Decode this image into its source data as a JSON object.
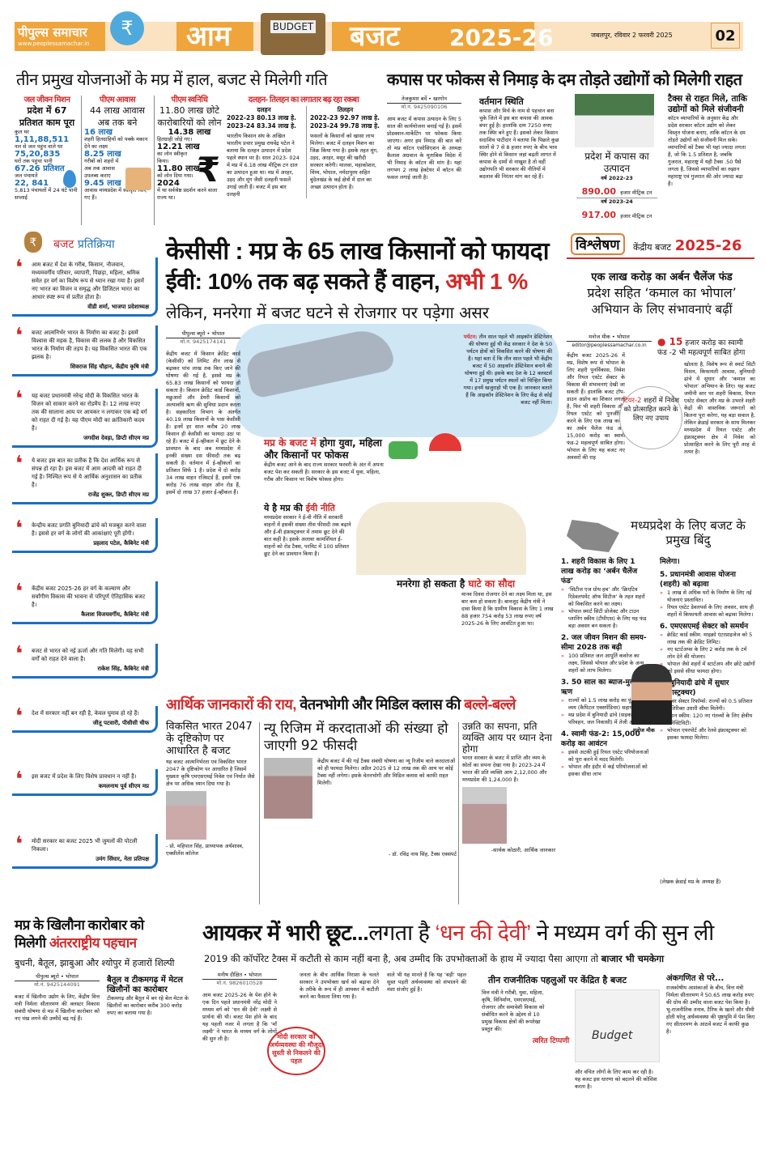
{
  "masthead": {
    "paper_name": "पीपुल्स समाचार",
    "website": "www.peoplessamachar.in",
    "rupee_symbol": "₹",
    "title_left": "आम",
    "briefcase_label": "BUDGET",
    "title_right": "बजट",
    "year": "2025-26",
    "dateline": "जबलपुर, रविवार 2 फरवरी 2025",
    "page_number": "02",
    "accent_color": "#f0a53c"
  },
  "schemes": {
    "headline": "तीन प्रमुख योजनाओं के मप्र में हाल, बजट से मिलेगी गति",
    "jal_jeevan": {
      "label": "जल जीवन मिशन",
      "title": "प्रदेश में 67 प्रतिशत काम पूरा",
      "lines": [
        "कुल घर",
        "1,11,88,511",
        "नल से जल पहुंच वाले घर",
        "75,20,835",
        "घरों तक पहुंचा पानी",
        "67.26 प्रतिशत",
        "जल पंचायतें",
        "22, 841",
        "5,813 पंचायतों में 24 घंटे पानी सप्लाई"
      ]
    },
    "pm_awas": {
      "label": "पीएम आवास",
      "title": "44 लाख आवास अब तक बने",
      "lines": [
        "16 लाख",
        "शहरी हितग्राहियों को पक्के मकान देने का लक्ष्य",
        "8.25 लाख",
        "गरीबों को शहरों में अब तक आवास उपलब्ध कराए",
        "9.45 लाख",
        "आवास मध्यप्रदेश में स्वीकृत किए गए हैं।"
      ]
    },
    "pm_svanidhi": {
      "label": "पीएम स्वनिधि",
      "title": "11.80 लाख छोटे कारोबारियों को लोन",
      "lines": [
        "14.38 लाख",
        "हितग्राही जोड़े गए।",
        "12.21 लाख",
        "का लोन स्वीकृत किया।",
        "11.80 लाख",
        "को लोन दिया गया।",
        "2024",
        "में था सर्वश्रेष्ठ प्रदर्शन करने वाला राज्य था।"
      ]
    },
    "pulses": {
      "label": "दलहन- तिलहन का लगातार बढ़ रहा रकबा",
      "dalhan": {
        "title": "दलहन",
        "rows": [
          "2022-23  80.13 लाख हे.",
          "2023-24  83.34 लाख हे."
        ]
      },
      "tilhan": {
        "title": "तिलहन",
        "rows": [
          "2022-23  92.97 लाख हे.",
          "2023-24  99.78 लाख हे."
        ]
      },
      "text1": "भारतीय किसान संघ के अखिल भारतीय प्रचार प्रमुख राघवेंद्र पटेल ने बताया कि दलहन उत्पादन में प्रदेश पहले स्थान पर है। साल 2023- 024 में मप्र में 6.18 लाख मीट्रिक टन दाल का उत्पादन हुआ था। मप्र में अरहर, उड़द और मूंग जैसी दलहनी फसलें उगाई जाती हैं। बजट में इस बार दलहनी",
      "text2": "फसलों के किसानों को खासा लाभ मिलेगा। बजट में दलहन मिशन का जिक्र किया गया है। इसके तहत मूंग, उड़द, अरहर, मसूर की खरीदी सरकार करेगी। मालवा, महाकोशल, विंध्य, भोपाल, नर्मदापुरम सहित बुंदेलखंड के कई क्षेत्रों में दाल का अच्छा उत्पादन होता है।"
    }
  },
  "cotton": {
    "headline": "कपास पर फोकस से निमाड़ के दम तोड़ते उद्योगों को मिलेगी राहत",
    "byline": "तेजकुमार बर्वे • खरगोन",
    "phone": "मो.नं. 9425090106",
    "text1": "आम बजट में कपास उत्पादन के लिए 5 साल की कार्ययोजना बनाई गई है। इसमें प्रोडक्शन-मार्केटिंग पर फोकस किया जाएगा। अगर हम निमाड़ की बात करें तो मप्र कॉटन एसोसिएशन के अध्यक्ष कैलाश अग्रवाल के मुताबिक विदेश में भी निमाड़ के कॉटन की मांग है। यहां लगभग 2 लाख हेक्टेयर में कॉटन की फसल लगाई जाती है।",
    "sub1": "वर्तमान स्थिति",
    "text2": "कपास और मिर्च के नाम से पहचान बना चुके जिले में इस बार कपास की आवक बंपर हुई है। हालांकि दाम 7250 रुपए तक स्थिर बने हुए हैं। इसको लेकर किसान सदाशिव पाटीदार ने बताया कि पिछले कुछ सालों से 7 से 8 हजार रुपए के बीच भाव स्थिर होने से किसान जहां बढ़ती लागत में कपास के दामों से नाखुश है तो वहीं उद्योगपति भी सरकार की नीतियों में बदलाव की निरंतर मांग कर रहे हैं।",
    "production_title": "प्रदेश में कपास का उत्पादन",
    "year1": "वर्ष 2022-23",
    "value1": "890.00",
    "year2": "वर्ष 2023-24",
    "value2": "917.00",
    "unit": "हजार मीट्रिक टन",
    "sub2": "टैक्स से राहत मिले, ताकि उद्योगों को मिले संजीवनी",
    "text3": "कॉटन व्यापारियों के अनुसार केंद्र और प्रदेश सरकार कॉटन उद्योग को लेकर विस्तृत योजना बनाए, ताकि कॉटन के दम तोड़ते उद्योगों को संजीवनी मिल सके। व्यापारियों को टैक्स भी यहां ज्यादा लगता है, जो कि 1.5 प्रतिशत है, जबकि गुजरात, महाराष्ट्र में यही टैक्स .50 पैसे लगता है, जिससे व्यापारियों का रुझान महाराष्ट्र एवं गुजरात की ओर ज्यादा बढ़ा है।"
  },
  "reactions": {
    "heading_a": "बजट",
    "heading_b": "प्रतिक्रिया",
    "quotes": [
      {
        "text": "आम बजट में देश के गरीब, किसान, नौजवान, मध्यमवर्गीय परिवार, व्यापारी, पिछड़ा, महिला, श्रमिक समेत हर वर्ग का विशेष रूप से ध्यान रखा गया है। इसमें नए भारत का विजन व समृद्ध और डिजिटल भारत का आधार स्पष्ट रूप से प्रतीत होता है।",
        "by": "वीडी शर्मा, भाजपा प्रदेशाध्यक्ष"
      },
      {
        "text": "बजट आत्मनिर्भर भारत के निर्माण का बजट है। इसमें विश्वास की महक है, विकास की ललक है और विकसित भारत के निर्माण की तड़प है। यह विकसित भारत की एक झलक है।",
        "by": "शिवराज सिंह चौहान, केंद्रीय कृषि मंत्री"
      },
      {
        "text": "यह बजट प्रधानमंत्री नरेन्द्र मोदी के विकसित भारत के विजन को साकार करने का रोडमैप है। 12 लाख रुपए तक की सालाना आय पर आयकर न लगाकर एक बड़े वर्ग को राहत दी गई है। यह पीएम मोदी का क्रांतिकारी कदम है।",
        "by": "जगदीश देवड़ा, डिप्टी सीएम मप्र"
      },
      {
        "text": "ये बजट इस बात का प्रतीक है कि देश आर्थिक रूप से संपन्न हो रहा है। इस बजट में आम आदमी को राहत दी गई है। निश्चित रूप से ये आर्थिक अनुशासन का प्रतीक है।",
        "by": "राजेंद्र शुक्ल, डिप्टी सीएम मप्र"
      },
      {
        "text": "केन्द्रीय बजट प्रगति बुनियादी ढांचे को मजबूत करने वाला है। इससे हर वर्ग के लोगों की आकांक्षाएं पूरी होंगी।",
        "by": "प्रहलाद पटेल, कैबिनेट मंत्री"
      },
      {
        "text": "केंद्रीय बजट 2025-26 हर वर्ग के कल्याण और सर्वांगीण विकास की भावना से परिपूर्ण ऐतिहासिक बजट है।",
        "by": "कैलाश विजयवर्गीय, कैबिनेट मंत्री"
      },
      {
        "text": "बजट से भारत को नई ऊर्जा और गति मिलेगी। यह सभी वर्गों को राहत देने वाला है।",
        "by": "राकेश सिंह, कैबिनेट मंत्री"
      },
      {
        "text": "देश में सरकार नहीं बन रही है, केवल घुमाव हो रहे हैं।",
        "by": "जीतू पटवारी, पीसीसी चीफ"
      },
      {
        "text": "इस बजट में प्रदेश के लिए विशेष प्रावधान न नहीं है।",
        "by": "कमलनाथ पूर्व सीएम मप्र"
      },
      {
        "text": "मोदी सरकार का बजट 2025 भी जुमलों की पोटली निकला।",
        "by": "उमंग सिंघार, नेता प्रतिपक्ष"
      }
    ]
  },
  "main": {
    "headline1": "केसीसी : मप्र के 65 लाख किसानों को फायदा",
    "headline2a": "ईवी: 10% तक बढ़ सकते हैं वाहन,",
    "headline2b": "अभी 1 %",
    "headline3": "लेकिन, मनरेगा में बजट घटने से रोजगार पर पड़ेगा असर",
    "byline": "पीपुल्स ब्यूरो • भोपाल",
    "phone": "मो.नं. 9425174141",
    "text1": "केंद्रीय बजट में किसान क्रेडिट कार्ड (केसीसी) को लिमिट तीन लाख से बढ़ाकर पांच लाख तक किए जाने की घोषणा की गई है, इससे मप्र के 65.83 लाख किसानों को फायदा हो सकता है। किसान क्रेडिट कार्ड किसानों, मछुआरों और डेयरी किसानों को अल्पावधि ऋण की सुविधा प्रदान करता है। सहकारिता विभाग के अंतर्गत 40.19 लाख किसानों के पास केसीसी है। इनमें हर साल करीब 20 लाख किसान ही केसीसी का फायदा उठा पा रहे हैं। बजट में ई-व्हीकल में छूट देने के प्रावधान के बाद अब मध्यप्रदेश में इनकी संख्या दस फीसदी तक बढ़ सकती है। वर्तमान में ई-व्हीकलों का प्रतिशत सिर्फ 1 है। प्रदेश में दो करोड़ 34 लाख वाहन रजिस्टर्ड हैं, इसमें एक करोड़ 76 लाख वाहन ऑन रोड हैं, इसमें दो लाख 37 हजार ई-व्हीकल हैं।",
    "tourism_label": "पर्यटन:",
    "tourism_text": "तीन साल पहले भी आइकॉन डेस्टिनेशन की घोषणा हुई थी केंद्र सरकार ने देश के 50 पर्यटन क्षेत्रों को विकसित करने की घोषणा की है। यहां बता दें कि तीन साल पहले भी केंद्रीय बजट में 50 आइकॉन डेस्टिनेशन बनाने की घोषणा हुई थी। इसके बाद देश के 12 क्लस्टर्स में 17 प्रमुख पर्यटन स्थलों को चिन्हित किया गया। इनमें खजुराहो भी एक है। जानकार बताते हैं कि आइकॉन डेस्टिनेशन के लिए केंद्र से कोई बजट नहीं मिला।",
    "focus_a": "मप्र के बजट में",
    "focus_b": "होगा युवा, महिला और किसानों पर फोकस",
    "focus_text": "केंद्रीय बजट आने के बाद राज्य सरकार फरवरी के अंत में अपना बजट पेश कर सकती है। सरकार के इस बजट में युवा, महिला, गरीब और किसान पर विशेष फोकस होगा।",
    "ev_a": "ये है मप्र की",
    "ev_b": "ईवी नीति",
    "ev_text": "मध्यप्रदेश सरकार ने ई-वी नीति में सरकारी वाहनों में इसकी संख्या तीस फीसदी तक बढ़ाने और ई-वी इंफ्रास्ट्रक्चर में तमाम छूट देने की बात कही है। इसके अलावा कामर्शियल ई-वाहनों को रोड टैक्स, परमिट में 100 प्रतिशत छूट देने का प्रावधान किया है।",
    "mnrega_a": "मनरेगा हो सकता है",
    "mnrega_b": "घाटे का सौदा",
    "mnrega_text": "मानव दिवस रोजगार देने का लक्ष्य मिला था, इस बार कम हो सकता है। बावजूद केंद्रीय मंत्री ने दावा किया है कि ग्रामीण विकास के लिए 1 लाख 88 हजार 754 करोड़ 53 लाख रुपए वर्ष 2025-26 के लिए आवंटित हुआ था।"
  },
  "analysis": {
    "tag": "विश्लेषण",
    "series_a": "केंद्रीय बजट",
    "series_b": "2025-26",
    "headline1": "एक लाख करोड़ का अर्बन चैलेंज फंड",
    "headline2": "प्रदेश सहित ‘कमाल का भोपाल’",
    "headline3": "अभियान के लिए संभावनाएं बढ़ीं",
    "byline": "मनोज मीक • भोपाल",
    "email": "editor@peoplessamachar.co.in",
    "callout_a": "15",
    "callout_b": "हजार करोड़ का स्वामी फंड -2 भी महत्वपूर्ण साबित होगा",
    "circle_a": "टियर-2",
    "circle_b": "शहरों में निवेश को प्रोत्साहित करने के लिए नए उपाय",
    "text1": "केंद्रीय बजट 2025-26 में मप्र, विशेष रूप से भोपाल के लिए शहरी पुनर्विकास, निवेश और रियल एस्टेट सेक्टर के विकास की संभावनाएं देखी जा सकती हैं। हालांकि बजट टॉप-डाउन अप्रोच का शिकार लगता है, फिर भी शहरी विकास और रियल एस्टेट को पुनर्जीवित करने के लिए एक लाख करोड़ का अर्बन चैलेंज फंड और 15,000 करोड़ का स्वामी फंड-2 महत्वपूर्ण साबित होगा। भोपाल के लिए यह बजट नए अवसरों की राह",
    "text2": "खोलता है, विशेष रूप से स्मार्ट सिटी मिशन, किफायती आवास, बुनियादी ढांचे में सुधार और ‘कमाल का भोपाल’ अभियान के लिए। यह बजट जमीनी स्तर पर शहरी विकास, रियल एस्टेट सेक्टर और मप्र के उभरते शहरी केंद्रों की वास्तविक जरूरतों को कितना पूरा करेगा, यह बड़ा सवाल है, लेकिन क्रेडाई सरकार के साथ मिलकर मध्यप्रदेश में रियल एस्टेट और इंफ्रास्ट्रक्चर क्षेत्र में निवेश को प्रोत्साहित करने के लिए पूरी तरह से तत्पर है।",
    "points_title": "मध्यप्रदेश के लिए बजट के प्रमुख बिंदु",
    "points_left": [
      {
        "title": "1. शहरी विकास के लिए 1 लाख करोड़ का ‘अर्बन चैलेंज फंड’",
        "items": [
          "‘सिटीज एज ग्रोथ हब’ और ‘क्रिएटिव रिडेवलपमेंट ऑफ सिटीज’ के तहत शहरों को विकसित करने का लक्ष्य।",
          "भोपाल स्मार्ट सिटी प्रोजेक्ट और टाउन प्लानिंग स्कीम (टीपीएस) के लिए यह फंड बड़ा अवसर बन सकता है।"
        ]
      },
      {
        "title": "2. जल जीवन मिशन की समय-सीमा 2028 तक बढ़ी",
        "items": [
          "100 प्रतिशत जल आपूर्ति कवरेज का लक्ष्य, जिससे भोपाल और प्रदेश के अन्य शहरों को लाभ मिलेगा।"
        ]
      },
      {
        "title": "3. 50 साल का ब्याज-मुक्त ऋण",
        "items": [
          "राज्यों को 1.5 लाख करोड़ का पूंजीगत व्यय (कैपिटल एक्सपेंडिचर) सहायता।",
          "मप्र प्रदेश में बुनियादी ढांचे (सड़क, परिवहन, जल निकासी) में तेजी आएगी।"
        ]
      },
      {
        "title": "4. स्वामी फंड-2: 15,000 करोड़ का आवंटन",
        "items": [
          "इससे अटकी हुई रियल एस्टेट परियोजनाओं को पूरा करने में मदद मिलेगी।",
          "भोपाल और इंदौर में कई परियोजनाओं को इसका सीधा लाभ"
        ]
      }
    ],
    "points_right": [
      {
        "title": "मिलेगा।",
        "items": []
      },
      {
        "title": "5. प्रधानमंत्री आवास योजना (शहरी) को बढ़ावा",
        "items": [
          "1 लाख से अधिक घरों के निर्माण के लिए नई योजनाएं प्रस्तावित।",
          "रियल एस्टेट डेवलपर्स के लिए अवसर, साथ ही शहरों में किफायती आवास को बढ़ावा मिलेगा।"
        ]
      },
      {
        "title": "6. एमएसएमई सेक्टर को समर्थन",
        "items": [
          "क्रेडिट कार्ड स्कीम: माइक्रो एंटरप्राइजेज को 5 लाख तक की क्रेडिट लिमिट।",
          "नए स्टार्टअप्स के लिए 2 करोड़ तक के टर्म लोन देने की योजना।",
          "भोपाल जैसे शहरों में स्टार्टअप और छोटे उद्योगों को इससे सीधा फायदा होगा।"
        ]
      },
      {
        "title": "7. बुनियादी ढांचे में सुधार (इंफ्रास्ट्रक्चर)",
        "items": [
          "पावर सेक्टर रिफॉर्म्स: राज्यों को 0.5 प्रतिशत अतिरिक्त उधारी सीमा मिलेगी।",
          "उड़ान स्कीम: 120 नए गंतव्यों के लिए क्षेत्रीय कनेक्टिविटी।",
          "भोपाल एयरपोर्ट और रेलवे इंफ्रास्ट्रक्चर को इसका फायदा मिलेगा।"
        ]
      }
    ],
    "author_caption": "मनोज मीक",
    "author_note": "(लेखक क्रेडाई मप्र के अध्यक्ष हैं)"
  },
  "experts": {
    "headline_a": "आर्थिक जानकारों की राय,",
    "headline_b": "वेतनभोगी और मिडिल क्लास की",
    "headline_c": "बल्ले-बल्ले",
    "col1_title": "विकसित भारत 2047 के दृष्टिकोण पर आधारित है बजट",
    "col1_text": "यह बजट आत्मनिर्भरता एवं विकसित भारत 2047 के दृष्टिकोण पर आधारित है जिसमें मुख्यतः कृषि एमएसएमई निवेश एवं निर्यात जैसे क्षेत्र पर अधिक ध्यान दिया गया है।",
    "col1_by": "- प्रो. महिपाल सिंह, प्राध्यापक अर्थशास्त्र, एक्सीलेंस कॉलेज",
    "col2_title": "न्यू रिजिम में करदाताओं की संख्या हो जाएगी 92 फीसदी",
    "col2_text": "केंद्रीय बजट में की गई टैक्स संबंधी घोषणा का न्यू रिजीम वाले करदाताओं को ही फायदा मिलेगा। अप्रैल 2025 से 12 लाख तक की आय पर कोई टैक्स नहीं लगेगा। इसके वेतनभोगी और मिडिल क्लास को काफी राहत मिलेगी।",
    "col2_by": "- डॉ. रविंद्र नाथ सिंह, टैक्स एक्सपर्ट",
    "col3_title": "उन्नति का सपना, प्रति व्यक्ति आय पर ध्यान देना होगा",
    "col3_text": "भारत सरकार के बजट में प्राप्ति और व्यय के स्रोतों का सपना देखा गया है। 2023-24 में भारत की प्रति व्यक्ति आय 2,12,000 और मध्यप्रदेश की 1,24,000 है।",
    "col3_by": "-सार्थक कोठारी, आर्थिक जानकार"
  },
  "toys": {
    "headline_a": "मप्र के खिलौना कारोबार को",
    "headline_b": "मिलेगी",
    "headline_c": "अंतरराष्ट्रीय पहचान",
    "subhead": "बुधनी, बैतूल, झाबुआ और श्योपुर में हजारों शिल्पी",
    "byline": "पीपुल्स ब्यूरो • भोपाल",
    "phone": "मो.नं. 9425144091",
    "sub2": "बैतूल व टीकमगढ़ में मेटल खिलौनों का कारोबार",
    "text1": "बजट में खिलौना उद्योग के लिए, केंद्रीय वित्त मंत्री निर्मला सीतारमण की क्लस्टर विकास संबंधी घोषणा से मप्र में खिलौना कारोबार को नए पंख लगने की उम्मीदें बढ़ गई हैं।",
    "text2": "टीकमगढ़ और बैतूल में बन रहे बेल मेटल के खिलौनों का कारोबार करीब 300 करोड़ रुपए का बताया गया है।"
  },
  "income_tax": {
    "headline_a": "आयकर में भारी छूट...",
    "headline_b": "लगता है",
    "headline_c": "‘धन की देवी’",
    "headline_d": "ने मध्यम वर्ग की सुन ली",
    "subhead_a": "2019 की कॉर्पोरेट टैक्स में कटौती से काम नहीं बना है,  अब उम्मीद कि उपभोक्ताओं के हाथ में ज्यादा पैसा आएगा तो",
    "subhead_b": "बाजार भी चमकेगा",
    "byline": "मनीष दीक्षित • भोपाल",
    "phone": "मो.नं. 9826010528",
    "text1": "आम बजट 2025-26 के पेश होने के एक दिन पहले प्रधानमंत्री नरेंद्र मोदी ने मध्यम वर्ग को ‘धन की देवी’ लक्ष्मी से प्रार्थना की थी। बजट पेश होने के बाद यह पहली नजर में लगता है कि ‘माँ लक्ष्मी’ ने भारत के मध्यम वर्ग के लोगों की सुन ली है।",
    "callout": "मोदी सरकार को अर्थव्यवस्था की मौजूदा सुस्ती से निकलने की पहल",
    "text2": "जनता के बीच आर्थिक निराशा के चलते सरकार ने उपभोक्ता खर्च को बढ़ावा देने के तरीके के रूप में ही आयकर में कटौती करने का फैसला लिया गया है।",
    "text3": "वाले भी यह मानते हैं कि यह ‘बड़ी’ पहल सुस्त पड़ती अर्थव्यवस्था को संभालने की मंशा संजोए हुई है।"
  },
  "political": {
    "headline": "तीन राजनीतिक पहलुओं पर केंद्रित है बजट",
    "tag": "त्वरित टिप्पणी",
    "image_label": "Budget",
    "text": "वित्त मंत्री ने गरीबी, युवा, महिला, कृषि, विनिर्माण, एमएसएमई, रोजगार और समावेशी विकास को संबोधित करने के उद्देश्य से 10 प्रमुख विकास क्षेत्रों की रूपरेखा प्रस्तुत की।",
    "text2": "और वंचित लोगों के लिए काम कर रही है। यह बजट इस धारणा को बदलने की कोशिश करता है।"
  },
  "arithmetic": {
    "headline": "अंकगणित से परे...",
    "text": "राजकोषीय आशंकाओं के बीच, वित्त मंत्री निर्मला सीतारमण ने 50.65 लाख करोड़ रुपए की ग्रोथ की उम्मीद वाला बजट पेश किया है। भू-राजनीतिक तनाव, टैरिफ के खतरे और धीमी होती घरेलू अर्थव्यवस्था की पृष्ठभूमि में पेश किए गए सीतारमण के आठवें बजट में काफी कुछ है।"
  }
}
